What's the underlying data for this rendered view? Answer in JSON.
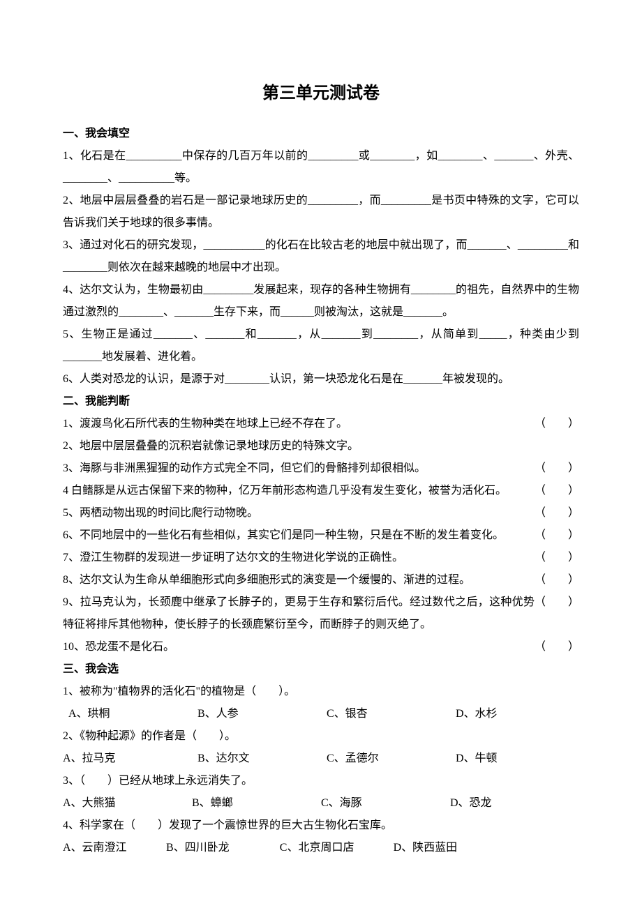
{
  "title": "第三单元测试卷",
  "sections": {
    "s1": {
      "heading": "一、我会填空"
    },
    "s2": {
      "heading": "二、我能判断"
    },
    "s3": {
      "heading": "三、我会选"
    }
  },
  "fill": {
    "q1": "1、化石是在__________中保存的几百万年以前的_________或________，如________、_______、外壳、________、__________等。",
    "q2": "2、地层中层层叠叠的岩石是一部记录地球历史的_________，而_________是书页中特殊的文字，它可以告诉我们关于地球的很多事情。",
    "q3": "3、通过对化石的研究发现，___________的化石在比较古老的地层中就出现了，而_______、_________和________则依次在越来越晚的地层中才出现。",
    "q4": "4、达尔文认为，生物最初由_________发展起来，现存的各种生物拥有________的祖先，自然界中的生物通过激烈的________、_______生存下来，而______则被淘汰，这就是_______。",
    "q5": "5、生物正是通过_______、_______和_______，从_______到________，从简单到_____，种类由少到_______地发展着、进化着。",
    "q6": "6、人类对恐龙的认识，是源于对________认识，第一块恐龙化石是在_______年被发现的。"
  },
  "judge": {
    "q1": "1、渡渡鸟化石所代表的生物种类在地球上已经不存在了。",
    "q2": "2、地层中层层叠叠的沉积岩就像记录地球历史的特殊文字。",
    "q3": "3、海豚与非洲黑猩猩的动作方式完全不同，但它们的骨骼排列却很相似。",
    "q4": "4 白鳍豚是从远古保留下来的物种，亿万年前形态构造几乎没有发生变化，被誉为活化石。",
    "q5": "5、两栖动物出现的时间比爬行动物晚。",
    "q6": "6、不同地层中的一些化石有些相似，其实它们是同一种生物，只是在不断的发生着变化。",
    "q7": "7、澄江生物群的发现进一步证明了达尔文的生物进化学说的正确性。",
    "q8": "8、达尔文认为生命从单细胞形式向多细胞形式的演变是一个缓慢的、渐进的过程。",
    "q9": "9、拉马克认为，长颈鹿中继承了长脖子的，更易于生存和繁衍后代。经过数代之后，这种优势特征将排斥其他物种，使长脖子的长颈鹿繁衍至今，而断脖子的则灭绝了。",
    "q10": "10、恐龙蛋不是化石。",
    "paren": "（　　）"
  },
  "choice": {
    "q1": {
      "stem": "1、被称为\"植物界的活化石\"的植物是（　　）。",
      "a": "A、珙桐",
      "b": "B、人参",
      "c": "C、银杏",
      "d": "D、水杉"
    },
    "q2": {
      "stem": "2、《物种起源》的作者是（　　）。",
      "a": "A、拉马克",
      "b": "B、达尔文",
      "c": "C、孟德尔",
      "d": "D、牛顿"
    },
    "q3": {
      "stem": "3、（　　）已经从地球上永远消失了。",
      "a": "A、大熊猫",
      "b": "B、蟑螂",
      "c": "C、海豚",
      "d": "D、恐龙"
    },
    "q4": {
      "stem": "4、科学家在（　　）发现了一个震惊世界的巨大古生物化石宝库。",
      "a": "A、云南澄江",
      "b": "B、四川卧龙",
      "c": "C、北京周口店",
      "d": "D、陕西蓝田"
    }
  }
}
